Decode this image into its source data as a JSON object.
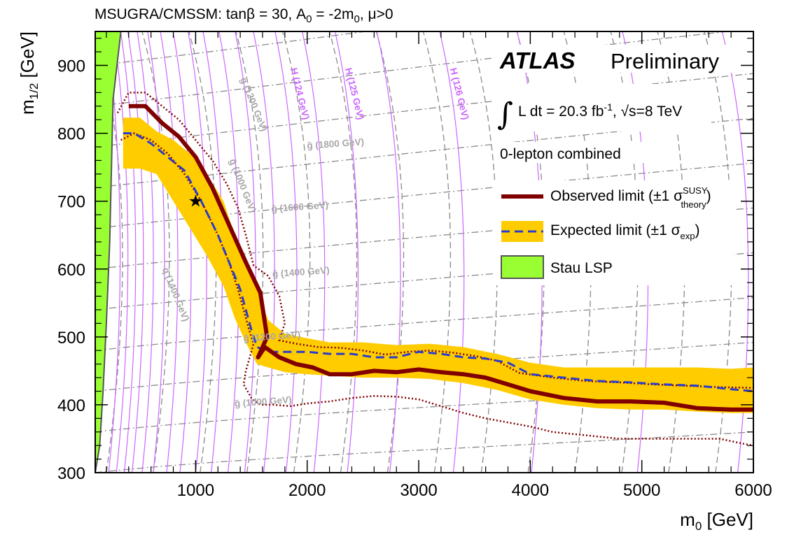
{
  "chart_data": {
    "type": "line",
    "title": "MSUGRA/CMSSM: tanβ = 30, A0 = -2m0, μ>0",
    "title_parts": {
      "a": "MSUGRA/CMSSM: tanβ = 30, A",
      "sub": "0",
      "b": " = -2m",
      "sub2": "0",
      "c": ", μ>0"
    },
    "xlabel": {
      "main": "m",
      "sub": "0",
      "unit": " [GeV]"
    },
    "ylabel": {
      "main": "m",
      "sub": "1/2",
      "unit": " [GeV]"
    },
    "xlim": [
      100,
      6000
    ],
    "ylim": [
      300,
      950
    ],
    "xticks": [
      1000,
      2000,
      3000,
      4000,
      5000,
      6000
    ],
    "yticks": [
      300,
      400,
      500,
      600,
      700,
      800,
      900
    ],
    "atlas": {
      "bold": "ATLAS",
      "rest": "Preliminary"
    },
    "lumi": {
      "integral": "∫",
      "text1": "L dt = 20.3 fb",
      "sup": "-1",
      "text2": ", √s=8 TeV"
    },
    "analysis": "0-lepton combined",
    "legend": [
      {
        "label": "Observed limit (±1 σ",
        "sup": "SUSY",
        "sub": "theory",
        "close": ")"
      },
      {
        "label": "Expected limit (±1 σ",
        "sub": "exp",
        "close": ")"
      },
      {
        "label": "Stau LSP"
      }
    ],
    "colors": {
      "observed": "#800000",
      "expected": "#2a3ccc",
      "band": "#ffcc00",
      "stau": "#99ff33",
      "higgs": "#cc66ff",
      "contour": "#888888",
      "label_gray": "#a8a8a8"
    },
    "observed": {
      "x": [
        400,
        550,
        700,
        850,
        1000,
        1150,
        1300,
        1450,
        1580,
        1640,
        1560,
        1620,
        1750,
        1900,
        2050,
        2200,
        2400,
        2600,
        2800,
        3000,
        3200,
        3400,
        3600,
        3800,
        4000,
        4300,
        4600,
        4900,
        5200,
        5500,
        5800,
        6000
      ],
      "y": [
        840,
        840,
        815,
        795,
        765,
        720,
        665,
        610,
        565,
        500,
        470,
        485,
        470,
        460,
        455,
        445,
        445,
        450,
        448,
        452,
        448,
        445,
        440,
        430,
        420,
        410,
        405,
        405,
        403,
        395,
        393,
        393
      ]
    },
    "observed_plus": {
      "x": [
        300,
        400,
        550,
        700,
        850,
        1000,
        1150,
        1280,
        1380,
        1450,
        1520,
        1650,
        1750,
        1800,
        1750,
        1900,
        2100,
        2300,
        2500,
        2700,
        2900,
        3100,
        3300,
        3500,
        3700,
        3900,
        4200,
        4500,
        4800,
        5100,
        5400,
        5700,
        6000
      ],
      "y": [
        830,
        860,
        860,
        840,
        820,
        790,
        760,
        725,
        690,
        650,
        605,
        590,
        560,
        520,
        495,
        490,
        485,
        484,
        480,
        474,
        478,
        480,
        477,
        472,
        465,
        447,
        440,
        435,
        433,
        430,
        428,
        426,
        425
      ]
    },
    "observed_minus": {
      "x": [
        330,
        450,
        600,
        750,
        900,
        1050,
        1200,
        1300,
        1380,
        1430,
        1480,
        1520,
        1450,
        1430,
        1500,
        1580,
        1700,
        1850,
        2000,
        2200,
        2400,
        2600,
        2800,
        3000,
        3200,
        3400,
        3600,
        3800,
        4000,
        4200,
        4500,
        4800,
        5100,
        5400,
        5700,
        5900,
        6000
      ],
      "y": [
        790,
        800,
        790,
        770,
        740,
        700,
        650,
        610,
        570,
        540,
        510,
        490,
        450,
        430,
        410,
        400,
        400,
        398,
        402,
        405,
        410,
        413,
        412,
        408,
        398,
        388,
        380,
        374,
        368,
        360,
        355,
        350,
        350,
        350,
        350,
        343,
        340
      ]
    },
    "expected": {
      "x": [
        350,
        450,
        600,
        750,
        900,
        1050,
        1200,
        1300,
        1400,
        1450,
        1500,
        1550,
        1650,
        1800,
        2000,
        2200,
        2400,
        2600,
        2800,
        3000,
        3200,
        3400,
        3600,
        3800,
        4000,
        4300,
        4600,
        4900,
        5200,
        5500,
        5800,
        6000
      ],
      "y": [
        800,
        800,
        785,
        765,
        745,
        700,
        650,
        610,
        570,
        540,
        510,
        485,
        478,
        478,
        478,
        475,
        475,
        470,
        470,
        478,
        475,
        470,
        468,
        462,
        445,
        440,
        435,
        433,
        430,
        428,
        423,
        420
      ]
    },
    "band_upper": {
      "x": [
        350,
        500,
        650,
        800,
        950,
        1100,
        1250,
        1350,
        1450,
        1550,
        1650,
        1800,
        2000,
        2200,
        2500,
        2800,
        3100,
        3400,
        3700,
        4000,
        4300,
        4600,
        4900,
        5200,
        5500,
        5800,
        6000
      ],
      "y": [
        823,
        823,
        803,
        790,
        770,
        740,
        700,
        650,
        610,
        570,
        525,
        505,
        498,
        492,
        492,
        488,
        490,
        485,
        475,
        462,
        455,
        455,
        455,
        455,
        455,
        453,
        455
      ]
    },
    "band_lower": {
      "x": [
        350,
        500,
        650,
        800,
        950,
        1100,
        1250,
        1350,
        1450,
        1550,
        1650,
        1800,
        2000,
        2200,
        2500,
        2800,
        3100,
        3400,
        3700,
        4000,
        4300,
        4600,
        4900,
        5200,
        5500,
        5800,
        6000
      ],
      "y": [
        748,
        748,
        740,
        700,
        660,
        620,
        575,
        528,
        492,
        460,
        455,
        448,
        445,
        443,
        440,
        440,
        438,
        432,
        422,
        408,
        400,
        395,
        393,
        393,
        390,
        388,
        388
      ]
    },
    "stau_boundary": {
      "x": [
        100,
        140,
        170,
        200,
        230,
        260,
        330
      ],
      "y": [
        300,
        340,
        420,
        520,
        640,
        850,
        950
      ]
    },
    "benchmark": {
      "x": 1000,
      "y": 700
    },
    "contour_labels": [
      {
        "text": "g̃ (1200 GeV)",
        "x": 1400,
        "y": 880,
        "angle": 68
      },
      {
        "text": "g̃ (1000 GeV)",
        "x": 1300,
        "y": 760,
        "angle": 68
      },
      {
        "text": "g̃ (1800 GeV)",
        "x": 2000,
        "y": 777,
        "angle": -4
      },
      {
        "text": "g̃ (1600 GeV)",
        "x": 1680,
        "y": 684,
        "angle": -4
      },
      {
        "text": "g̃ (1400 GeV)",
        "x": 1690,
        "y": 588,
        "angle": -4
      },
      {
        "text": "g̃ (1200 GeV)",
        "x": 1430,
        "y": 493,
        "angle": -4
      },
      {
        "text": "g̃ (1000 GeV)",
        "x": 1350,
        "y": 397,
        "angle": -4
      },
      {
        "text": "q̃ (1400 GeV)",
        "x": 700,
        "y": 600,
        "angle": 68
      }
    ],
    "higgs_labels": [
      {
        "text": "H (124 GeV)",
        "x": 1850,
        "y": 895,
        "angle": 76
      },
      {
        "text": "H (125 GeV)",
        "x": 2340,
        "y": 895,
        "angle": 76
      },
      {
        "text": "H (126 GeV)",
        "x": 3280,
        "y": 895,
        "angle": 76
      }
    ]
  }
}
